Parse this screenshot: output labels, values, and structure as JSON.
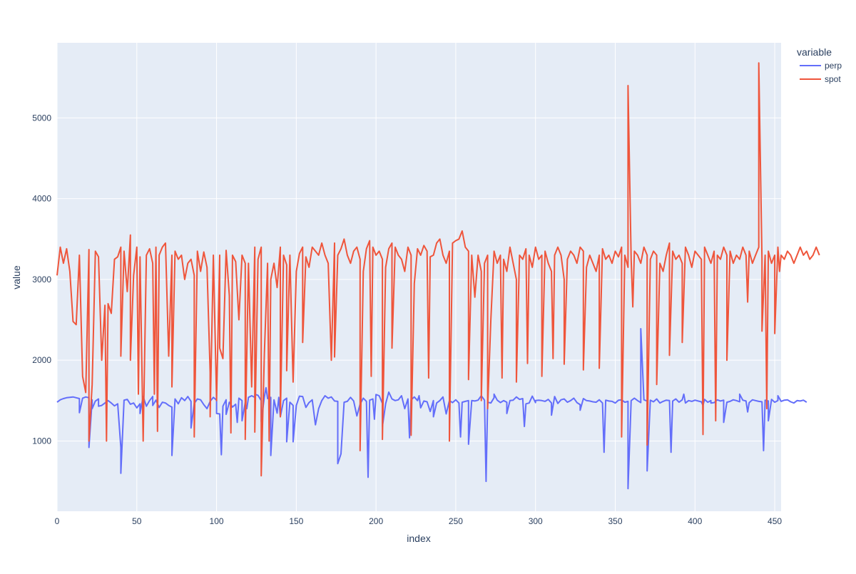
{
  "chart_data": {
    "type": "line",
    "title": "",
    "xlabel": "index",
    "ylabel": "value",
    "xlim": [
      0,
      454
    ],
    "ylim": [
      130,
      5930
    ],
    "x_ticks": [
      0,
      50,
      100,
      150,
      200,
      250,
      300,
      350,
      400,
      450
    ],
    "y_ticks": [
      1000,
      2000,
      3000,
      4000,
      5000
    ],
    "grid": true,
    "legend_title": "variable",
    "legend_position": "top-right",
    "x_step": 2,
    "series": [
      {
        "name": "perp",
        "color": "#636efa",
        "values": [
          1480,
          1510,
          1525,
          1535,
          1540,
          1545,
          1535,
          1525,
          1530,
          1545,
          1535,
          1510,
          1495,
          1520,
          1440,
          1470,
          1500,
          1470,
          1435,
          1460,
          920,
          1505,
          1515,
          1455,
          1470,
          1410,
          1460,
          1550,
          1430,
          1500,
          1550,
          1505,
          1415,
          1480,
          1470,
          1440,
          1420,
          1520,
          1460,
          1535,
          1500,
          1550,
          1490,
          1465,
          1520,
          1510,
          1450,
          1400,
          1490,
          1540,
          1505,
          1335,
          1430,
          1510,
          1480,
          1420,
          1455,
          1530,
          1500,
          1475,
          1540,
          1560,
          1540,
          1565,
          1500,
          1545,
          1525,
          1540,
          1510,
          1345,
          1300,
          1500,
          1530,
          1480,
          1440,
          1440,
          1555,
          1550,
          1415,
          1475,
          1510,
          1200,
          1400,
          1500,
          1560,
          1530,
          1545,
          1495,
          1490,
          840,
          1480,
          1490,
          1540,
          1495,
          1310,
          1455,
          1530,
          1490,
          1505,
          1520,
          1575,
          1560,
          1465,
          1460,
          1605,
          1520,
          1500,
          1510,
          1560,
          1400,
          1520,
          1510,
          1545,
          1500,
          1410,
          1495,
          1485,
          1365,
          1500,
          1470,
          1500,
          1545,
          1335,
          1500,
          1475,
          1510,
          1470,
          1480,
          1490,
          1500,
          1500,
          1495,
          1505,
          1560,
          1505,
          1480,
          1470,
          1535,
          1505,
          1475,
          1500,
          1480,
          1500,
          1505,
          1545,
          1515,
          1525,
          1460,
          1470,
          1555,
          1475,
          1505,
          1500,
          1490,
          1515,
          1470,
          1550,
          1465,
          1510,
          1520,
          1480,
          1500,
          1530,
          1475,
          1450,
          1525,
          1500,
          1495,
          1485,
          1480,
          1510,
          1470,
          1505,
          1495,
          1490,
          1470,
          1505,
          1510,
          1480,
          1490,
          1500,
          1530,
          1500,
          1475,
          1510,
          1495,
          1505,
          1485,
          1520,
          1470,
          1490,
          1505,
          1500,
          1495,
          1520,
          1480,
          1510,
          1470,
          1500,
          1490,
          1505,
          1495,
          1485,
          1515,
          1480,
          1500,
          1475,
          1510,
          1495,
          1505,
          1480,
          1490,
          1510,
          1500,
          1485,
          1505,
          1495,
          1475,
          1510,
          1500,
          1490,
          1485,
          1505,
          1495,
          1515,
          1480,
          1500,
          1490,
          1505,
          1510,
          1485,
          1470,
          1500,
          1495,
          1505,
          1480
        ],
        "dips": [
          [
            14,
            1350
          ],
          [
            20,
            920
          ],
          [
            22,
            1400
          ],
          [
            26,
            1430
          ],
          [
            40,
            600
          ],
          [
            52,
            1340
          ],
          [
            60,
            1440
          ],
          [
            72,
            820
          ],
          [
            84,
            1160
          ],
          [
            100,
            1340
          ],
          [
            103,
            830
          ],
          [
            106,
            1330
          ],
          [
            113,
            1230
          ],
          [
            116,
            1250
          ],
          [
            119,
            1400
          ],
          [
            124,
            1580
          ],
          [
            128,
            1240
          ],
          [
            131,
            1660
          ],
          [
            134,
            820
          ],
          [
            139,
            1540
          ],
          [
            144,
            990
          ],
          [
            148,
            990
          ],
          [
            176,
            720
          ],
          [
            195,
            550
          ],
          [
            199,
            1270
          ],
          [
            204,
            1180
          ],
          [
            221,
            1040
          ],
          [
            227,
            1560
          ],
          [
            236,
            1300
          ],
          [
            253,
            1050
          ],
          [
            258,
            960
          ],
          [
            269,
            500
          ],
          [
            274,
            1580
          ],
          [
            282,
            1340
          ],
          [
            293,
            1180
          ],
          [
            300,
            1500
          ],
          [
            310,
            1320
          ],
          [
            328,
            1380
          ],
          [
            343,
            860
          ],
          [
            358,
            410
          ],
          [
            366,
            2390
          ],
          [
            370,
            630
          ],
          [
            385,
            860
          ],
          [
            393,
            1580
          ],
          [
            405,
            1440
          ],
          [
            410,
            1470
          ],
          [
            418,
            1230
          ],
          [
            428,
            1580
          ],
          [
            433,
            1360
          ],
          [
            443,
            880
          ],
          [
            446,
            1250
          ],
          [
            452,
            1560
          ]
        ]
      },
      {
        "name": "spot",
        "color": "#ef553b",
        "values": [
          3050,
          3400,
          3200,
          3380,
          3100,
          2480,
          2440,
          3300,
          1800,
          1600,
          3370,
          1700,
          3350,
          3280,
          2000,
          2680,
          2700,
          2580,
          3250,
          3280,
          3400,
          3350,
          2850,
          3550,
          3050,
          3400,
          3280,
          1000,
          3300,
          3380,
          3200,
          3400,
          3300,
          3400,
          3450,
          2050,
          3300,
          3350,
          3250,
          3300,
          3000,
          3200,
          3250,
          3050,
          3350,
          3100,
          3340,
          3150,
          1850,
          3300,
          1500,
          3300,
          2020,
          3360,
          2800,
          3300,
          3220,
          2500,
          3300,
          3200,
          3200,
          1670,
          3400,
          3250,
          3400,
          2080,
          3200,
          3000,
          3200,
          2900,
          3400,
          3300,
          3180,
          3300,
          1730,
          3100,
          3320,
          3400,
          3280,
          3150,
          3400,
          3350,
          3300,
          3450,
          3300,
          3200,
          2000,
          3450,
          3300,
          3380,
          3500,
          3300,
          3200,
          3350,
          3400,
          3250,
          3100,
          3380,
          3480,
          3400,
          3300,
          3350,
          3250,
          3150,
          3380,
          3450,
          3400,
          3300,
          3250,
          3100,
          3400,
          3300,
          2950,
          3380,
          3300,
          3420,
          3350,
          3280,
          3300,
          3450,
          3500,
          3300,
          3200,
          3350,
          3450,
          3480,
          3500,
          3600,
          3400,
          3350,
          3300,
          2780,
          3300,
          3100,
          3200,
          3300,
          2500,
          3350,
          3200,
          3300,
          3250,
          3100,
          3400,
          3200,
          3000,
          3300,
          3250,
          3380,
          3300,
          3150,
          3400,
          3250,
          3300,
          3350,
          3200,
          3100,
          3300,
          3400,
          3300,
          3000,
          3250,
          3350,
          3300,
          3200,
          3400,
          3350,
          3150,
          3300,
          3200,
          3100,
          3300,
          3380,
          3250,
          3300,
          3200,
          3350,
          3280,
          3400,
          3300,
          3150,
          3250,
          3350,
          3300,
          3200,
          3400,
          3300,
          3250,
          3350,
          3300,
          3200,
          3100,
          3300,
          3450,
          3350,
          3250,
          3300,
          3200,
          3400,
          3300,
          3150,
          3350,
          3300,
          3250,
          3400,
          3300,
          3200,
          3350,
          3300,
          3250,
          3400,
          3300,
          3350,
          3200,
          3300,
          3250,
          3400,
          3300,
          3350,
          3200,
          3300,
          3400,
          3250,
          3300,
          3350,
          3200,
          3300,
          3400,
          3300,
          3250,
          3350,
          3300,
          3200,
          3300,
          3400,
          3300,
          3350,
          3250,
          3300,
          3400,
          3300
        ],
        "dips": [
          [
            20,
            1000
          ],
          [
            31,
            1000
          ],
          [
            40,
            2050
          ],
          [
            46,
            2000
          ],
          [
            51,
            1580
          ],
          [
            61,
            1580
          ],
          [
            63,
            1120
          ],
          [
            72,
            1670
          ],
          [
            86,
            1050
          ],
          [
            96,
            1300
          ],
          [
            102,
            2150
          ],
          [
            109,
            1100
          ],
          [
            118,
            1020
          ],
          [
            124,
            1110
          ],
          [
            128,
            570
          ],
          [
            133,
            1000
          ],
          [
            140,
            1300
          ],
          [
            144,
            1870
          ],
          [
            154,
            2220
          ],
          [
            174,
            2040
          ],
          [
            190,
            880
          ],
          [
            197,
            1800
          ],
          [
            204,
            1020
          ],
          [
            210,
            2150
          ],
          [
            222,
            1070
          ],
          [
            233,
            1780
          ],
          [
            246,
            1000
          ],
          [
            258,
            1760
          ],
          [
            266,
            1500
          ],
          [
            270,
            1400
          ],
          [
            279,
            1780
          ],
          [
            288,
            1730
          ],
          [
            295,
            1960
          ],
          [
            304,
            1800
          ],
          [
            311,
            2020
          ],
          [
            318,
            1950
          ],
          [
            330,
            1880
          ],
          [
            340,
            1900
          ],
          [
            354,
            1050
          ],
          [
            358,
            5400
          ],
          [
            361,
            2660
          ],
          [
            370,
            950
          ],
          [
            376,
            1700
          ],
          [
            384,
            2060
          ],
          [
            392,
            2220
          ],
          [
            405,
            1080
          ],
          [
            413,
            1250
          ],
          [
            420,
            2000
          ],
          [
            433,
            2720
          ],
          [
            440,
            5680
          ],
          [
            442,
            2360
          ],
          [
            445,
            1400
          ],
          [
            450,
            2330
          ],
          [
            453,
            3100
          ]
        ]
      }
    ]
  }
}
